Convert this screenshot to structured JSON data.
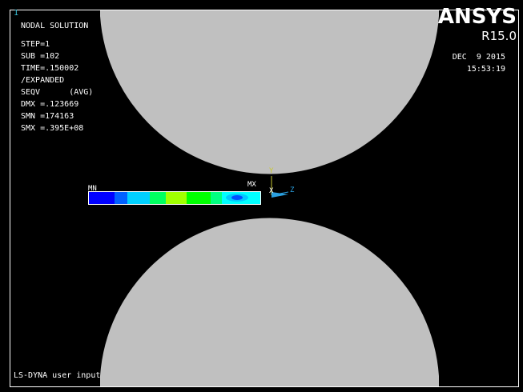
{
  "window": {
    "number": "1"
  },
  "brand": {
    "name": "ANSYS",
    "version": "R15.0"
  },
  "solution": {
    "title": "NODAL SOLUTION",
    "lines": [
      "STEP=1",
      "SUB =102",
      "TIME=.150002",
      "/EXPANDED",
      "SEQV      (AVG)",
      "DMX =.123669",
      "SMN =174163",
      "SMX =.395E+08"
    ]
  },
  "timestamp": {
    "date": "DEC  9 2015",
    "time": "15:53:19"
  },
  "markers": {
    "min": "MN",
    "max": "MX"
  },
  "triad": {
    "y": "Y",
    "x": "X",
    "z": "Z"
  },
  "footer": {
    "text": "LS-DYNA user input"
  },
  "colors": {
    "background": "#000000",
    "roller": "#c0c0c0",
    "text": "#ffffff",
    "accent": "#39c0d8",
    "triad_y": "#c8c832",
    "triad_z": "#2aa0e0"
  },
  "contour": {
    "bands_left_to_right": [
      "#0000ff",
      "#0050ff",
      "#00c8ff",
      "#00ffc8",
      "#00ff64",
      "#96ff00",
      "#00ff00",
      "#00ffff"
    ],
    "max_region_colors": [
      "#00ffff",
      "#00c8ff",
      "#0050ff"
    ]
  }
}
